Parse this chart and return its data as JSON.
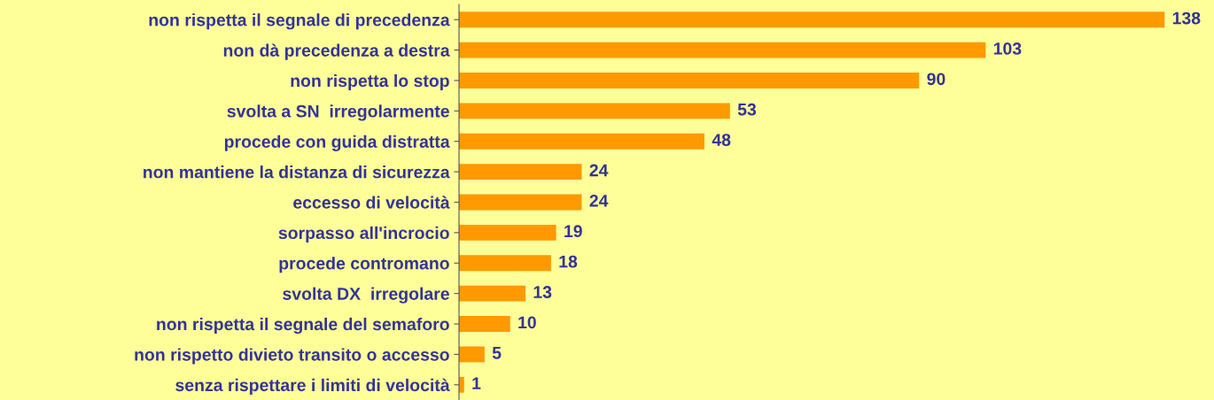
{
  "chart_data": {
    "type": "bar",
    "orientation": "horizontal",
    "categories": [
      "non rispetta il segnale di precedenza",
      "non dà precedenza a destra",
      "non rispetta lo stop",
      "svolta a SN  irregolarmente",
      "procede con guida distratta",
      "non mantiene la distanza di sicurezza",
      "eccesso di velocità",
      "sorpasso all'incrocio",
      "procede contromano",
      "svolta DX  irregolare",
      "non rispetta il segnale del semaforo",
      "non rispetto divieto transito o accesso",
      "senza rispettare i limiti di velocità"
    ],
    "values": [
      138,
      103,
      90,
      53,
      48,
      24,
      24,
      19,
      18,
      13,
      10,
      5,
      1
    ],
    "color": "#ff9900",
    "data_labels": true,
    "tick_labels": "y",
    "grid": false,
    "legend": false
  }
}
